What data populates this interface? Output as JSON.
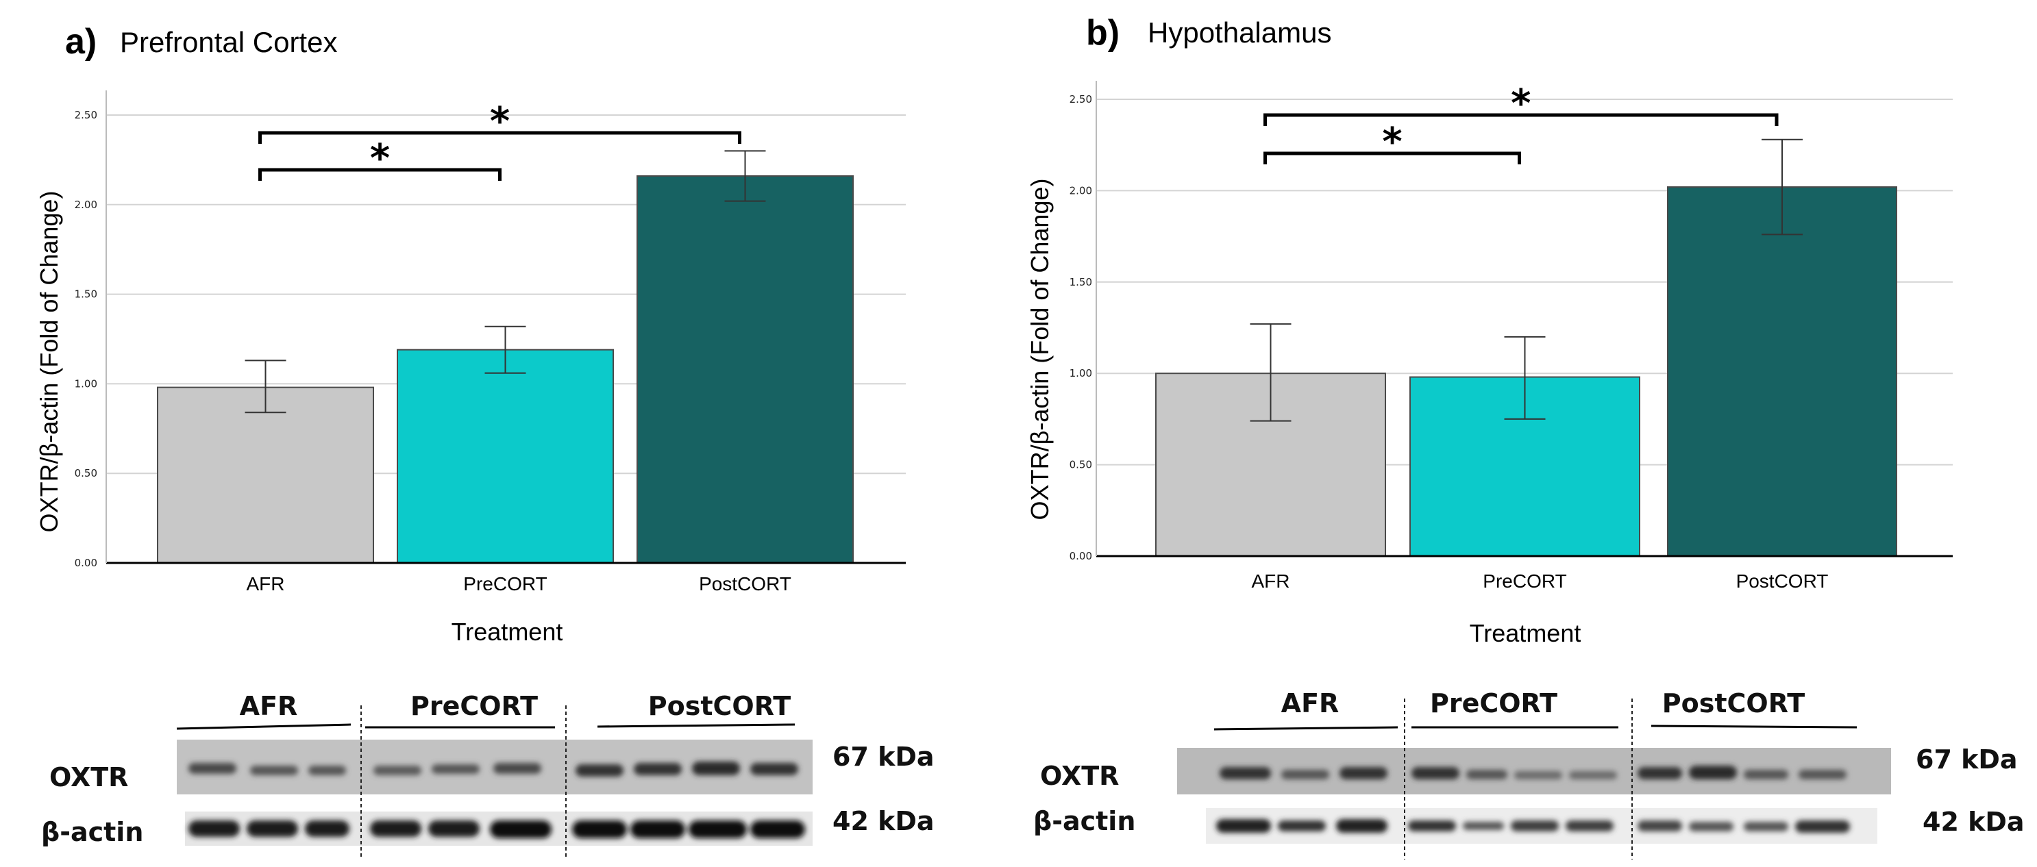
{
  "colors": {
    "afr": "#c8c8c8",
    "precort": "#0ccaca",
    "postcort": "#176262",
    "grid": "#d4d4d4",
    "axis": "#000000"
  },
  "chart_data": [
    {
      "type": "bar",
      "panel_letter": "a)",
      "title": "Prefrontal Cortex",
      "xlabel": "Treatment",
      "ylabel": "OXTR/β-actin (Fold of Change)",
      "ylim": [
        0,
        2.5
      ],
      "yticks": [
        "0.00",
        "0.50",
        "1.00",
        "1.50",
        "2.00",
        "2.50"
      ],
      "grid": true,
      "categories": [
        "AFR",
        "PreCORT",
        "PostCORT"
      ],
      "values": [
        0.98,
        1.19,
        2.16
      ],
      "err_low": [
        0.84,
        1.06,
        2.02
      ],
      "err_high": [
        1.13,
        1.32,
        2.3
      ],
      "significance": [
        {
          "from": 0,
          "to": 1,
          "label": "*"
        },
        {
          "from": 0,
          "to": 2,
          "label": "*"
        }
      ]
    },
    {
      "type": "bar",
      "panel_letter": "b)",
      "title": "Hypothalamus",
      "xlabel": "Treatment",
      "ylabel": "OXTR/β-actin (Fold of Change)",
      "ylim": [
        0,
        2.5
      ],
      "yticks": [
        "0.00",
        "0.50",
        "1.00",
        "1.50",
        "2.00",
        "2.50"
      ],
      "grid": true,
      "categories": [
        "AFR",
        "PreCORT",
        "PostCORT"
      ],
      "values": [
        1.0,
        0.98,
        2.02
      ],
      "err_low": [
        0.74,
        0.75,
        1.76
      ],
      "err_high": [
        1.27,
        1.2,
        2.28
      ],
      "significance": [
        {
          "from": 0,
          "to": 1,
          "label": "*"
        },
        {
          "from": 0,
          "to": 2,
          "label": "*"
        }
      ]
    }
  ],
  "blots": [
    {
      "groups": [
        "AFR",
        "PreCORT",
        "PostCORT"
      ],
      "rows": [
        "OXTR",
        "β-actin"
      ],
      "weights": [
        "67 kDa",
        "42 kDa"
      ]
    },
    {
      "groups": [
        "AFR",
        "PreCORT",
        "PostCORT"
      ],
      "rows": [
        "OXTR",
        "β-actin"
      ],
      "weights": [
        "67 kDa",
        "42 kDa"
      ]
    }
  ]
}
